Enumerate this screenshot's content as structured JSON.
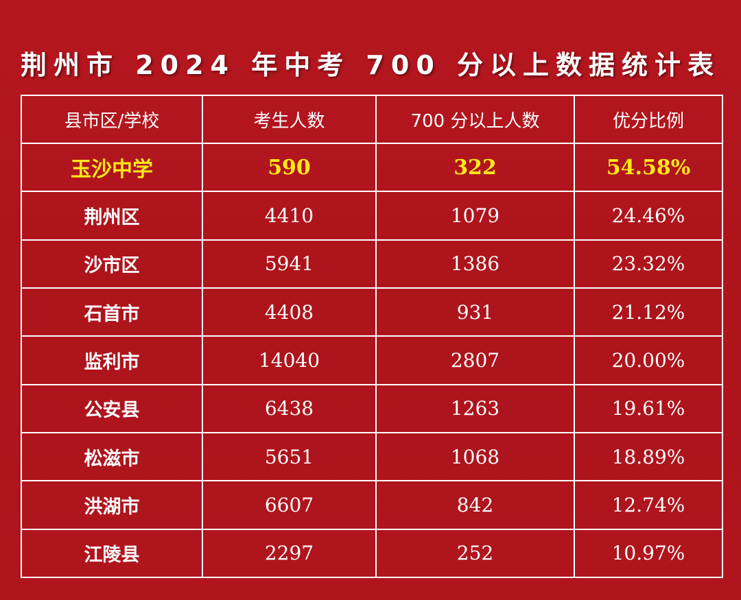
{
  "title": "荆州市 2024 年中考 700 分以上数据统计表",
  "colors": {
    "background": "#b0141d",
    "highlight_text": "#ffe81a",
    "text": "#ffffff",
    "border": "#ffffff"
  },
  "table": {
    "headers": [
      "县市区/学校",
      "考生人数",
      "700 分以上人数",
      "优分比例"
    ],
    "rows": [
      {
        "name": "玉沙中学",
        "students": "590",
        "above700": "322",
        "ratio": "54.58%"
      },
      {
        "name": "荆州区",
        "students": "4410",
        "above700": "1079",
        "ratio": "24.46%"
      },
      {
        "name": "沙市区",
        "students": "5941",
        "above700": "1386",
        "ratio": "23.32%"
      },
      {
        "name": "石首市",
        "students": "4408",
        "above700": "931",
        "ratio": "21.12%"
      },
      {
        "name": "监利市",
        "students": "14040",
        "above700": "2807",
        "ratio": "20.00%"
      },
      {
        "name": "公安县",
        "students": "6438",
        "above700": "1263",
        "ratio": "19.61%"
      },
      {
        "name": "松滋市",
        "students": "5651",
        "above700": "1068",
        "ratio": "18.89%"
      },
      {
        "name": "洪湖市",
        "students": "6607",
        "above700": "842",
        "ratio": "12.74%"
      },
      {
        "name": "江陵县",
        "students": "2297",
        "above700": "252",
        "ratio": "10.97%"
      }
    ]
  }
}
